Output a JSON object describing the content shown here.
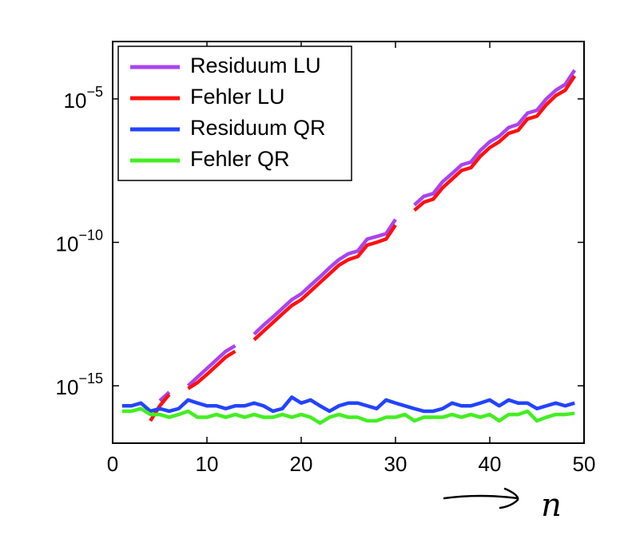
{
  "chart_data": {
    "type": "line",
    "x_label": "n",
    "log_y": true,
    "legend": "upper-left",
    "xlim": [
      0,
      50
    ],
    "xticks": [
      0,
      10,
      20,
      30,
      40,
      50
    ],
    "ylim": [
      1e-17,
      0.001
    ],
    "yticks": [
      {
        "value": 1e-15,
        "label": "10−15"
      },
      {
        "value": 1e-10,
        "label": "10−10"
      },
      {
        "value": 1e-05,
        "label": "10−5"
      }
    ],
    "x": [
      1,
      2,
      3,
      4,
      5,
      6,
      7,
      8,
      9,
      10,
      11,
      12,
      13,
      14,
      15,
      16,
      17,
      18,
      19,
      20,
      21,
      22,
      23,
      24,
      25,
      26,
      27,
      28,
      29,
      30,
      31,
      32,
      33,
      34,
      35,
      36,
      37,
      38,
      39,
      40,
      41,
      42,
      43,
      44,
      45,
      46,
      47,
      48,
      49
    ],
    "series": [
      {
        "name": "Residuum LU",
        "color": "#aa44ee",
        "values": [
          null,
          null,
          null,
          null,
          3e-16,
          6e-16,
          null,
          1e-15,
          2e-15,
          4e-15,
          8e-15,
          1.6e-14,
          2.5e-14,
          null,
          6.3e-14,
          1.3e-13,
          2.5e-13,
          5e-13,
          1e-12,
          1.6e-12,
          3.2e-12,
          6.3e-12,
          1.3e-11,
          2.5e-11,
          4e-11,
          5e-11,
          1.3e-10,
          1.6e-10,
          2e-10,
          6.3e-10,
          null,
          2e-09,
          4e-09,
          5e-09,
          1.3e-08,
          2.5e-08,
          5e-08,
          6.3e-08,
          1.6e-07,
          3.2e-07,
          5e-07,
          1e-06,
          1.3e-06,
          3.2e-06,
          4e-06,
          1e-05,
          2e-05,
          3.2e-05,
          0.0001
        ]
      },
      {
        "name": "Fehler LU",
        "color": "#ff1111",
        "values": [
          null,
          null,
          null,
          6e-17,
          2e-16,
          5e-16,
          null,
          8e-16,
          1.3e-15,
          2.5e-15,
          5e-15,
          1e-14,
          1.6e-14,
          null,
          4e-14,
          8e-14,
          1.6e-13,
          3.2e-13,
          6.3e-13,
          1e-12,
          2e-12,
          4e-12,
          8e-12,
          1.6e-11,
          2.5e-11,
          3.2e-11,
          8e-11,
          1e-10,
          1.3e-10,
          4e-10,
          null,
          1.3e-09,
          2.5e-09,
          3.2e-09,
          8e-09,
          1.6e-08,
          3.2e-08,
          4e-08,
          1e-07,
          2e-07,
          3.2e-07,
          6.3e-07,
          8e-07,
          2e-06,
          2.5e-06,
          6.3e-06,
          1.3e-05,
          2e-05,
          6.3e-05
        ]
      },
      {
        "name": "Residuum QR",
        "color": "#2244ff",
        "values": [
          2e-16,
          2e-16,
          2.5e-16,
          1.3e-16,
          1.6e-16,
          1.3e-16,
          1.6e-16,
          3.2e-16,
          2.5e-16,
          2e-16,
          2e-16,
          1.6e-16,
          2e-16,
          2e-16,
          2.5e-16,
          2e-16,
          1.3e-16,
          1.6e-16,
          4e-16,
          2.5e-16,
          3.2e-16,
          2e-16,
          1.3e-16,
          2e-16,
          2.5e-16,
          2.5e-16,
          2e-16,
          1.6e-16,
          3.2e-16,
          2.5e-16,
          2e-16,
          1.6e-16,
          1.3e-16,
          1.3e-16,
          1.6e-16,
          2.5e-16,
          2e-16,
          2e-16,
          2.5e-16,
          3.2e-16,
          2e-16,
          3.2e-16,
          2.5e-16,
          2.5e-16,
          1.6e-16,
          2e-16,
          2.5e-16,
          2e-16,
          2.5e-16
        ]
      },
      {
        "name": "Fehler QR",
        "color": "#44ee22",
        "values": [
          1.3e-16,
          1.3e-16,
          1.6e-16,
          1e-16,
          1e-16,
          8e-17,
          1e-16,
          1.3e-16,
          8e-17,
          8e-17,
          1e-16,
          8e-17,
          1e-16,
          8e-17,
          1e-16,
          8e-17,
          8e-17,
          1e-16,
          8e-17,
          1e-16,
          8e-17,
          5e-17,
          8e-17,
          1e-16,
          8e-17,
          8e-17,
          6e-17,
          6e-17,
          8e-17,
          8e-17,
          1e-16,
          6e-17,
          8e-17,
          8e-17,
          8e-17,
          1e-16,
          8e-17,
          1e-16,
          8e-17,
          1e-16,
          6e-17,
          1e-16,
          1e-16,
          1.3e-16,
          6e-17,
          8e-17,
          1e-16,
          1e-16,
          1.1e-16
        ]
      }
    ]
  }
}
